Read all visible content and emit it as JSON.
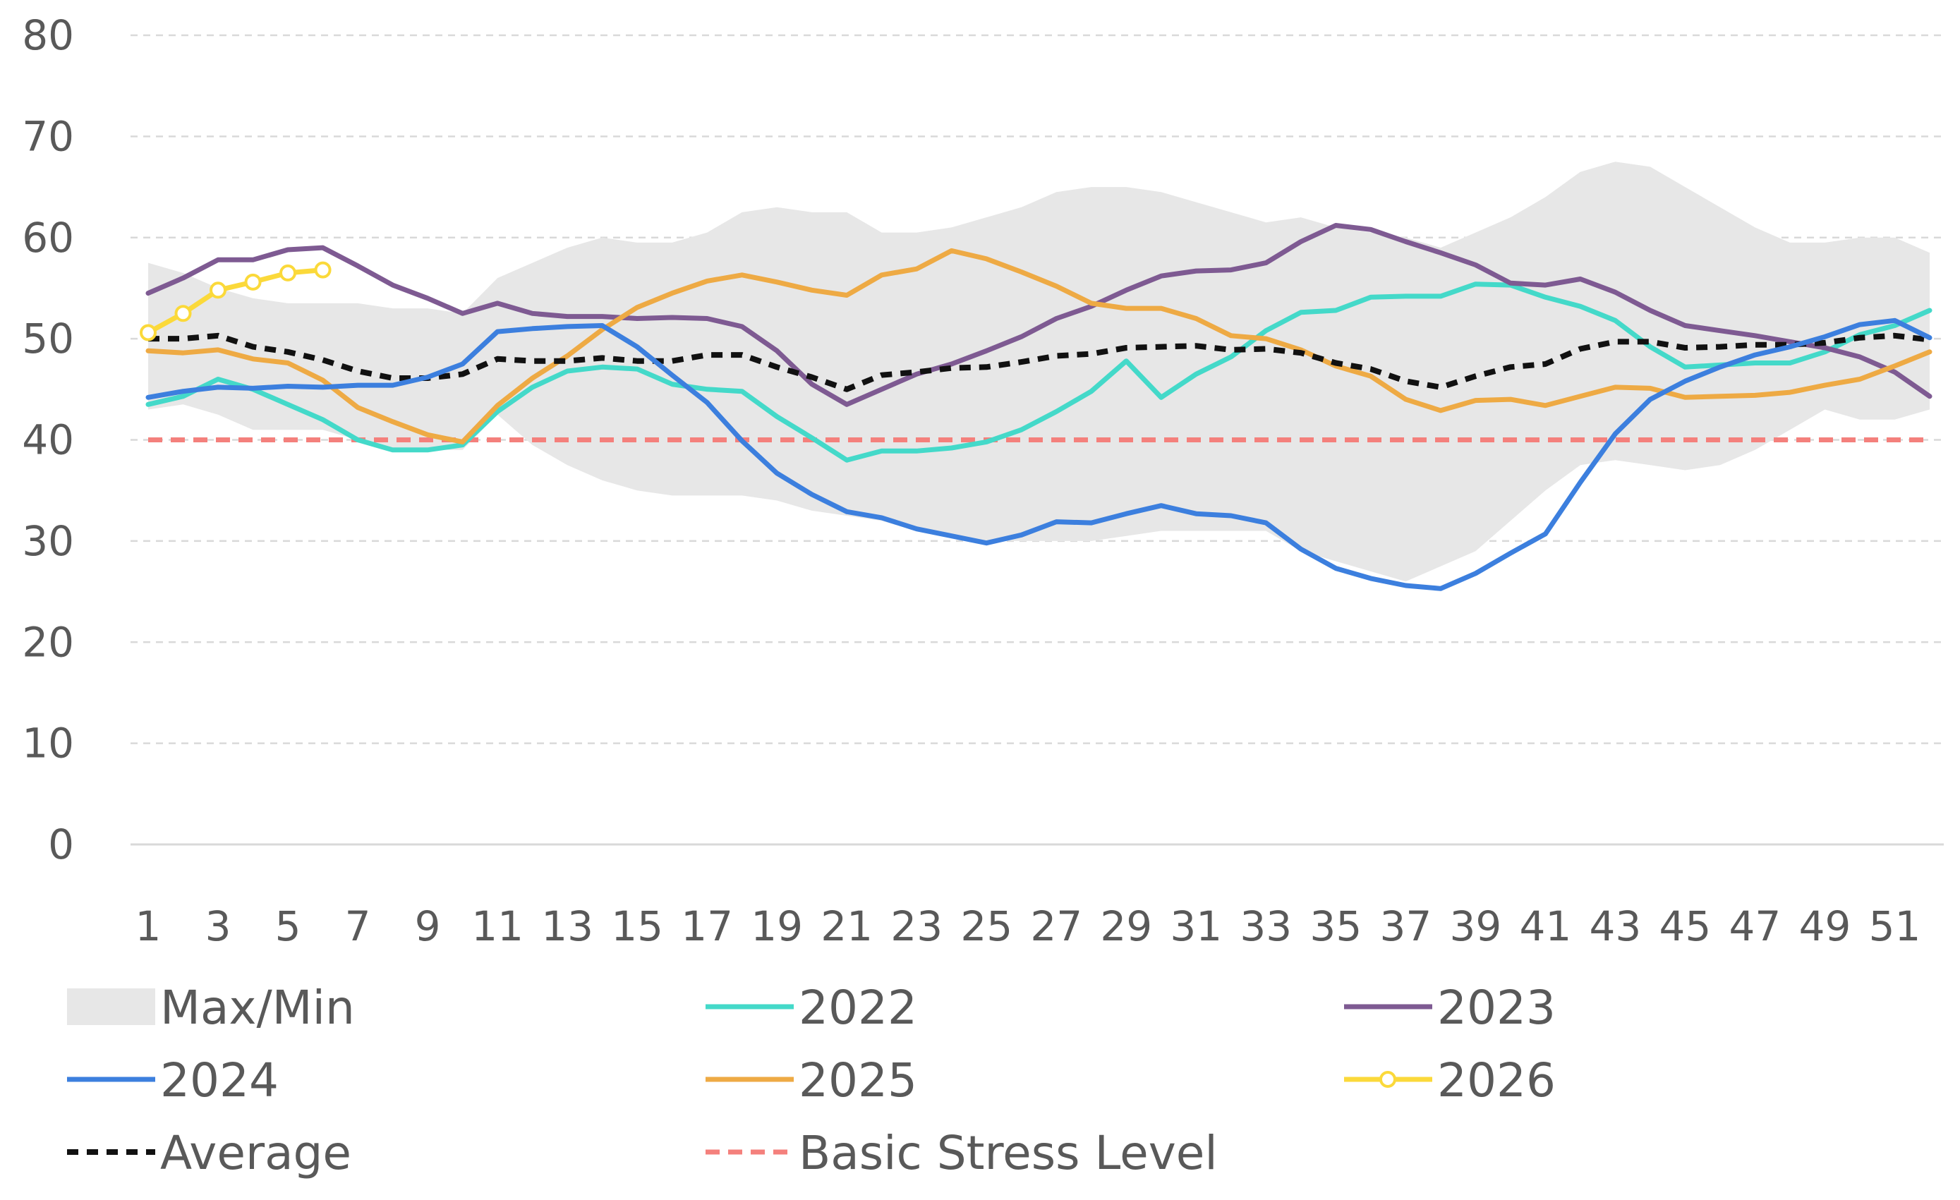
{
  "chart_data": {
    "type": "line",
    "title": "",
    "xlabel": "",
    "ylabel": "",
    "ylim": [
      0,
      80
    ],
    "yticks": [
      0,
      10,
      20,
      30,
      40,
      50,
      60,
      70,
      80
    ],
    "xlim": [
      1,
      52
    ],
    "xticks": [
      1,
      3,
      5,
      7,
      9,
      11,
      13,
      15,
      17,
      19,
      21,
      23,
      25,
      27,
      29,
      31,
      33,
      35,
      37,
      39,
      41,
      43,
      45,
      47,
      49,
      51
    ],
    "grid": true,
    "legend_position": "bottom",
    "band": {
      "name": "Max/Min",
      "color": "#e7e7e7",
      "max": [
        57.5,
        56.5,
        55,
        54,
        53.5,
        53.5,
        53.5,
        53,
        53,
        52.5,
        56,
        57.5,
        59,
        60,
        59.5,
        59.5,
        60.5,
        62.5,
        63,
        62.5,
        62.5,
        60.5,
        60.5,
        61,
        62,
        63,
        64.5,
        65,
        65,
        64.5,
        63.5,
        62.5,
        61.5,
        62,
        61,
        60.5,
        60,
        59,
        60.5,
        62,
        64,
        66.5,
        67.5,
        67,
        65,
        63,
        61,
        59.5,
        59.5,
        60,
        60,
        58.5
      ],
      "min": [
        43,
        43.5,
        42.5,
        41,
        41,
        41,
        40,
        39,
        39,
        39,
        42.5,
        39.5,
        37.5,
        36,
        35,
        34.5,
        34.5,
        34.5,
        34,
        33,
        32.5,
        32,
        31,
        30.5,
        30,
        30,
        30,
        30,
        30.5,
        31,
        31,
        31,
        31,
        29,
        28,
        27,
        26,
        27.5,
        29,
        32,
        35,
        37.5,
        38,
        37.5,
        37,
        37.5,
        39,
        41,
        43,
        42,
        42,
        43
      ]
    },
    "reference_line": {
      "name": "Basic Stress Level",
      "value": 40,
      "color": "#f4807c"
    },
    "series": [
      {
        "name": "2022",
        "color": "#44d9c9",
        "style": "solid",
        "markers": false,
        "values": [
          43.5,
          44.3,
          46,
          45,
          43.5,
          42,
          40,
          39,
          39,
          39.5,
          42.8,
          45.2,
          46.8,
          47.2,
          47,
          45.5,
          45,
          44.8,
          42.3,
          40.2,
          38,
          38.9,
          38.9,
          39.2,
          39.8,
          41,
          42.8,
          44.8,
          47.8,
          44.2,
          46.5,
          48.2,
          50.8,
          52.6,
          52.8,
          54.1,
          54.2,
          54.2,
          55.4,
          55.3,
          54.1,
          53.2,
          51.8,
          49.2,
          47.2,
          47.4,
          47.6,
          47.6,
          48.7,
          50.4,
          51.3,
          52.8
        ]
      },
      {
        "name": "2023",
        "color": "#7e5a92",
        "style": "solid",
        "markers": false,
        "values": [
          54.5,
          56,
          57.8,
          57.8,
          58.8,
          59,
          57.2,
          55.3,
          54,
          52.5,
          53.5,
          52.5,
          52.2,
          52.2,
          52,
          52.1,
          52,
          51.2,
          48.8,
          45.5,
          43.5,
          45,
          46.5,
          47.5,
          48.8,
          50.2,
          52,
          53.2,
          54.8,
          56.2,
          56.7,
          56.8,
          57.5,
          59.6,
          61.2,
          60.8,
          59.6,
          58.5,
          57.3,
          55.5,
          55.3,
          55.9,
          54.6,
          52.8,
          51.3,
          50.8,
          50.3,
          49.7,
          49.1,
          48.2,
          46.7,
          44.3
        ]
      },
      {
        "name": "2024",
        "color": "#3c7fde",
        "style": "solid",
        "markers": false,
        "values": [
          44.2,
          44.8,
          45.2,
          45.1,
          45.3,
          45.2,
          45.4,
          45.4,
          46.2,
          47.5,
          50.7,
          51,
          51.2,
          51.3,
          49.2,
          46.4,
          43.7,
          39.9,
          36.7,
          34.6,
          32.9,
          32.3,
          31.2,
          30.5,
          29.8,
          30.6,
          31.9,
          31.8,
          32.7,
          33.5,
          32.7,
          32.5,
          31.8,
          29.2,
          27.3,
          26.3,
          25.6,
          25.3,
          26.8,
          28.8,
          30.7,
          35.8,
          40.6,
          44,
          45.8,
          47.2,
          48.4,
          49.2,
          50.2,
          51.4,
          51.8,
          50.1
        ]
      },
      {
        "name": "2025",
        "color": "#eeaa44",
        "style": "solid",
        "markers": false,
        "values": [
          48.8,
          48.6,
          48.9,
          48,
          47.6,
          45.9,
          43.2,
          41.8,
          40.5,
          39.8,
          43.4,
          46.1,
          48.3,
          50.9,
          53.1,
          54.5,
          55.7,
          56.3,
          55.6,
          54.8,
          54.3,
          56.3,
          56.9,
          58.7,
          57.9,
          56.6,
          55.2,
          53.5,
          53,
          53,
          52,
          50.3,
          50,
          48.9,
          47.3,
          46.3,
          44,
          42.9,
          43.9,
          44,
          43.4,
          44.3,
          45.2,
          45.1,
          44.2,
          44.3,
          44.4,
          44.7,
          45.4,
          46,
          47.3,
          48.7
        ]
      },
      {
        "name": "2026",
        "color": "#fbd93a",
        "style": "solid",
        "markers": true,
        "values": [
          50.6,
          52.5,
          54.8,
          55.6,
          56.5,
          56.8
        ]
      },
      {
        "name": "Average",
        "color": "#111111",
        "style": "dashed",
        "markers": false,
        "values": [
          50,
          50,
          50.3,
          49.2,
          48.7,
          47.9,
          46.8,
          46.1,
          46.1,
          46.5,
          48,
          47.8,
          47.8,
          48.1,
          47.8,
          47.8,
          48.4,
          48.4,
          47.2,
          46.2,
          45,
          46.4,
          46.7,
          47.1,
          47.2,
          47.7,
          48.3,
          48.5,
          49.1,
          49.2,
          49.3,
          48.9,
          49,
          48.6,
          47.6,
          47,
          45.8,
          45.2,
          46.3,
          47.2,
          47.5,
          49,
          49.7,
          49.7,
          49.1,
          49.2,
          49.4,
          49.4,
          49.6,
          50.1,
          50.3,
          49.9
        ]
      }
    ]
  },
  "legend": [
    {
      "key": "band",
      "label": "Max/Min"
    },
    {
      "key": "2022",
      "label": "2022"
    },
    {
      "key": "2023",
      "label": "2023"
    },
    {
      "key": "2024",
      "label": "2024"
    },
    {
      "key": "2025",
      "label": "2025"
    },
    {
      "key": "2026",
      "label": "2026"
    },
    {
      "key": "Average",
      "label": "Average"
    },
    {
      "key": "reference",
      "label": "Basic Stress Level"
    }
  ]
}
